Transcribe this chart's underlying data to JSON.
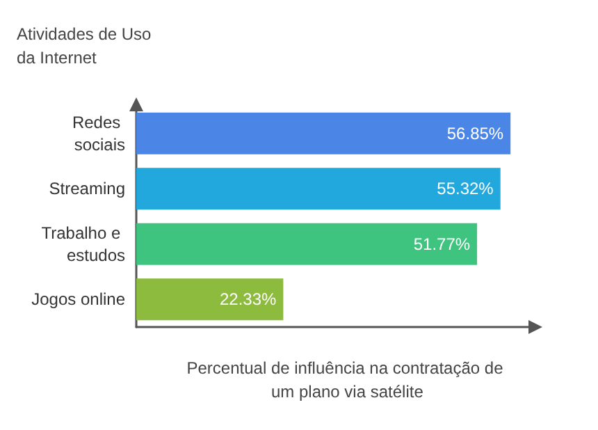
{
  "chart_data": {
    "type": "bar",
    "orientation": "horizontal",
    "ylabel": "Atividades de Uso da Internet",
    "xlabel": "Percentual de influência na contratação de um plano via satélite",
    "categories": [
      "Redes sociais",
      "Streaming",
      "Trabalho e estudos",
      "Jogos online"
    ],
    "values": [
      56.85,
      55.32,
      51.77,
      22.33
    ],
    "colors": [
      "#4b86e6",
      "#22a8dc",
      "#3ec47f",
      "#8dbb3d"
    ],
    "value_labels": [
      "56.85%",
      "55.32%",
      "51.77%",
      "22.33%"
    ],
    "xlim": [
      0,
      60
    ],
    "tick_labels": "y",
    "grid": false
  }
}
